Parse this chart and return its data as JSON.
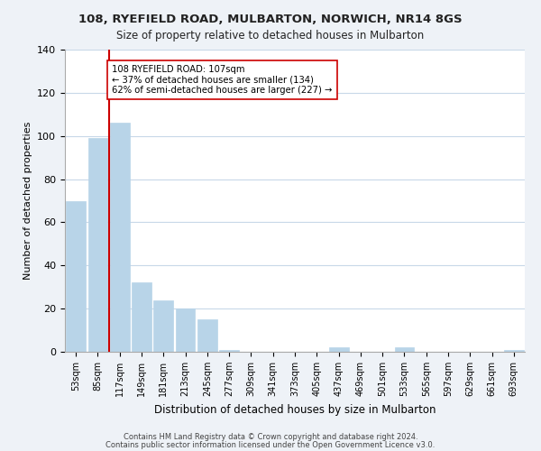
{
  "title_line1": "108, RYEFIELD ROAD, MULBARTON, NORWICH, NR14 8GS",
  "title_line2": "Size of property relative to detached houses in Mulbarton",
  "xlabel": "Distribution of detached houses by size in Mulbarton",
  "ylabel": "Number of detached properties",
  "bar_labels": [
    "53sqm",
    "85sqm",
    "117sqm",
    "149sqm",
    "181sqm",
    "213sqm",
    "245sqm",
    "277sqm",
    "309sqm",
    "341sqm",
    "373sqm",
    "405sqm",
    "437sqm",
    "469sqm",
    "501sqm",
    "533sqm",
    "565sqm",
    "597sqm",
    "629sqm",
    "661sqm",
    "693sqm"
  ],
  "bar_values": [
    70,
    99,
    106,
    32,
    24,
    20,
    15,
    1,
    0,
    0,
    0,
    0,
    2,
    0,
    0,
    2,
    0,
    0,
    0,
    0,
    1
  ],
  "bar_color": "#b8d4e8",
  "bar_edge_color": "#b8d4e8",
  "vline_x_index": 2,
  "vline_color": "#cc0000",
  "annotation_line1": "108 RYEFIELD ROAD: 107sqm",
  "annotation_line2": "← 37% of detached houses are smaller (134)",
  "annotation_line3": "62% of semi-detached houses are larger (227) →",
  "annotation_box_color": "#ffffff",
  "annotation_box_edge": "#cc0000",
  "ylim": [
    0,
    140
  ],
  "yticks": [
    0,
    20,
    40,
    60,
    80,
    100,
    120,
    140
  ],
  "footer_line1": "Contains HM Land Registry data © Crown copyright and database right 2024.",
  "footer_line2": "Contains public sector information licensed under the Open Government Licence v3.0.",
  "bg_color": "#eef2f7",
  "plot_bg_color": "#ffffff",
  "grid_color": "#c8d8e8"
}
